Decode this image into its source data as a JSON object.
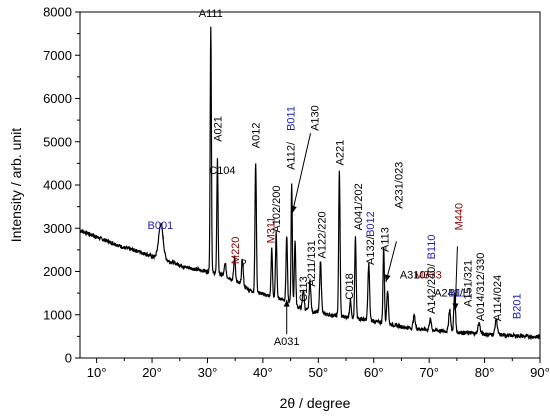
{
  "chart_data": {
    "type": "line",
    "title": "",
    "xlabel": "2θ / degree",
    "ylabel": "Intensity / arb. unit",
    "xlim": [
      7,
      90
    ],
    "ylim": [
      0,
      8000
    ],
    "x_ticks": [
      {
        "value": 10,
        "label": "10°"
      },
      {
        "value": 20,
        "label": "20°"
      },
      {
        "value": 30,
        "label": "30°"
      },
      {
        "value": 40,
        "label": "40°"
      },
      {
        "value": 50,
        "label": "50°"
      },
      {
        "value": 60,
        "label": "60°"
      },
      {
        "value": 70,
        "label": "70°"
      },
      {
        "value": 80,
        "label": "80°"
      },
      {
        "value": 90,
        "label": "90°"
      }
    ],
    "y_ticks": [
      {
        "value": 0,
        "label": "0"
      },
      {
        "value": 1000,
        "label": "1000"
      },
      {
        "value": 2000,
        "label": "2000"
      },
      {
        "value": 3000,
        "label": "3000"
      },
      {
        "value": 4000,
        "label": "4000"
      },
      {
        "value": 5000,
        "label": "5000"
      },
      {
        "value": 6000,
        "label": "6000"
      },
      {
        "value": 7000,
        "label": "7000"
      },
      {
        "value": 8000,
        "label": "8000"
      }
    ],
    "grid": false,
    "line_color": "#000000",
    "series": [
      {
        "baseline": [
          [
            7,
            2950
          ],
          [
            10,
            2800
          ],
          [
            12,
            2700
          ],
          [
            15,
            2550
          ],
          [
            18,
            2450
          ],
          [
            20,
            2350
          ],
          [
            22,
            2280
          ],
          [
            24,
            2200
          ],
          [
            26,
            2100
          ],
          [
            28,
            2050
          ],
          [
            30,
            2000
          ],
          [
            32,
            1950
          ],
          [
            34,
            1850
          ],
          [
            36,
            1700
          ],
          [
            38,
            1550
          ],
          [
            40,
            1480
          ],
          [
            42,
            1400
          ],
          [
            44,
            1350
          ],
          [
            46,
            1200
          ],
          [
            48,
            1100
          ],
          [
            50,
            1050
          ],
          [
            52,
            1000
          ],
          [
            55,
            950
          ],
          [
            58,
            900
          ],
          [
            60,
            850
          ],
          [
            63,
            780
          ],
          [
            66,
            700
          ],
          [
            70,
            650
          ],
          [
            75,
            600
          ],
          [
            80,
            550
          ],
          [
            85,
            520
          ],
          [
            90,
            480
          ]
        ],
        "peaks": [
          {
            "x": 21.6,
            "height": 800,
            "width": 0.8
          },
          {
            "x": 30.6,
            "height": 5700,
            "width": 0.22
          },
          {
            "x": 31.8,
            "height": 2650,
            "width": 0.22
          },
          {
            "x": 33.2,
            "height": 300,
            "width": 0.3
          },
          {
            "x": 34.9,
            "height": 550,
            "width": 0.3
          },
          {
            "x": 36.3,
            "height": 600,
            "width": 0.3
          },
          {
            "x": 38.7,
            "height": 3000,
            "width": 0.25
          },
          {
            "x": 41.6,
            "height": 1100,
            "width": 0.25
          },
          {
            "x": 42.4,
            "height": 1500,
            "width": 0.25
          },
          {
            "x": 44.3,
            "height": 1500,
            "width": 0.25
          },
          {
            "x": 45.2,
            "height": 2800,
            "width": 0.22
          },
          {
            "x": 45.8,
            "height": 1500,
            "width": 0.25
          },
          {
            "x": 47.3,
            "height": 450,
            "width": 0.3
          },
          {
            "x": 48.5,
            "height": 700,
            "width": 0.3
          },
          {
            "x": 50.4,
            "height": 1200,
            "width": 0.3
          },
          {
            "x": 53.8,
            "height": 3350,
            "width": 0.25
          },
          {
            "x": 55.8,
            "height": 400,
            "width": 0.3
          },
          {
            "x": 56.7,
            "height": 1850,
            "width": 0.25
          },
          {
            "x": 59.1,
            "height": 1300,
            "width": 0.3
          },
          {
            "x": 61.8,
            "height": 1750,
            "width": 0.25
          },
          {
            "x": 62.5,
            "height": 800,
            "width": 0.3
          },
          {
            "x": 67.3,
            "height": 300,
            "width": 0.35
          },
          {
            "x": 70.2,
            "height": 250,
            "width": 0.35
          },
          {
            "x": 73.7,
            "height": 500,
            "width": 0.35
          },
          {
            "x": 74.6,
            "height": 900,
            "width": 0.3
          },
          {
            "x": 79.0,
            "height": 250,
            "width": 0.4
          },
          {
            "x": 82.1,
            "height": 350,
            "width": 0.4
          }
        ]
      }
    ],
    "annotations": [
      {
        "text": "A111",
        "x": 30.6,
        "y": 7880,
        "color": "#000000",
        "rotate": false
      },
      {
        "text": "A021",
        "x": 31.8,
        "y": 5000,
        "color": "#000000",
        "rotate": true
      },
      {
        "text": "C104",
        "x": 32.7,
        "y": 4250,
        "color": "#000000",
        "rotate": false
      },
      {
        "text": "M220",
        "x": 35.0,
        "y": 2170,
        "color": "#8b0000",
        "rotate": true
      },
      {
        "text": "?",
        "x": 36.5,
        "y": 2100,
        "color": "#000000",
        "rotate": false
      },
      {
        "text": "A012",
        "x": 38.7,
        "y": 4850,
        "color": "#000000",
        "rotate": true
      },
      {
        "text": "M311",
        "x": 41.4,
        "y": 2650,
        "color": "#8b0000",
        "rotate": true
      },
      {
        "text": "A102/200",
        "x": 42.4,
        "y": 2900,
        "color": "#000000",
        "rotate": true
      },
      {
        "text": "A112/",
        "x": 45.0,
        "y": 4350,
        "color": "#000000",
        "rotate": true
      },
      {
        "text": "B011",
        "x": 45.0,
        "y": 5250,
        "color": "#1c1cb4",
        "rotate": true
      },
      {
        "text": "A130",
        "x": 49.3,
        "y": 5250,
        "color": "#000000",
        "rotate": true
      },
      {
        "text": "C113",
        "x": 47.2,
        "y": 1300,
        "color": "#000000",
        "rotate": true
      },
      {
        "text": "A211/131",
        "x": 48.7,
        "y": 1650,
        "color": "#000000",
        "rotate": true
      },
      {
        "text": "A122/220",
        "x": 50.6,
        "y": 2300,
        "color": "#000000",
        "rotate": true
      },
      {
        "text": "A221",
        "x": 53.8,
        "y": 4450,
        "color": "#000000",
        "rotate": true
      },
      {
        "text": "C018",
        "x": 55.5,
        "y": 1350,
        "color": "#000000",
        "rotate": true
      },
      {
        "text": "A041/202",
        "x": 57.2,
        "y": 2950,
        "color": "#000000",
        "rotate": true
      },
      {
        "text": "A132/",
        "x": 59.3,
        "y": 2150,
        "color": "#000000",
        "rotate": true
      },
      {
        "text": "B012",
        "x": 59.3,
        "y": 2800,
        "color": "#1c1cb4",
        "rotate": true
      },
      {
        "text": "A113",
        "x": 61.9,
        "y": 2450,
        "color": "#000000",
        "rotate": true
      },
      {
        "text": "A231/023",
        "x": 64.5,
        "y": 3450,
        "color": "#000000",
        "rotate": true
      },
      {
        "text": "A310/",
        "x": 67.3,
        "y": 1840,
        "color": "#000000",
        "rotate": false
      },
      {
        "text": "M333",
        "x": 69.8,
        "y": 1840,
        "color": "#8b0000",
        "rotate": false
      },
      {
        "text": "A142/240/",
        "x": 70.3,
        "y": 1020,
        "color": "#000000",
        "rotate": true
      },
      {
        "text": "B110",
        "x": 70.3,
        "y": 2280,
        "color": "#1c1cb4",
        "rotate": true
      },
      {
        "text": "A241/",
        "x": 73.5,
        "y": 1420,
        "color": "#000000",
        "rotate": false
      },
      {
        "text": "B111",
        "x": 75.6,
        "y": 1420,
        "color": "#1c1cb4",
        "rotate": false
      },
      {
        "text": "M440",
        "x": 75.3,
        "y": 2950,
        "color": "#8b0000",
        "rotate": true
      },
      {
        "text": "A151/321",
        "x": 76.9,
        "y": 1180,
        "color": "#000000",
        "rotate": true
      },
      {
        "text": "A014/312/330",
        "x": 79.2,
        "y": 850,
        "color": "#000000",
        "rotate": true
      },
      {
        "text": "A114/024",
        "x": 82.2,
        "y": 850,
        "color": "#000000",
        "rotate": true
      },
      {
        "text": "B201",
        "x": 85.8,
        "y": 900,
        "color": "#1c1cb4",
        "rotate": true
      },
      {
        "text": "B001",
        "x": 21.5,
        "y": 2980,
        "color": "#1c1cb4",
        "rotate": false
      },
      {
        "text": "A031",
        "x": 44.3,
        "y": 300,
        "color": "#000000",
        "rotate": false
      }
    ],
    "arrows": [
      {
        "from": [
          48.6,
          5200
        ],
        "to": [
          45.3,
          3350
        ]
      },
      {
        "from": [
          64.1,
          2700
        ],
        "to": [
          62.2,
          1760
        ]
      },
      {
        "from": [
          75.1,
          2580
        ],
        "to": [
          74.7,
          1100
        ]
      },
      {
        "from": [
          44.3,
          550
        ],
        "to": [
          44.3,
          1350
        ]
      }
    ]
  }
}
